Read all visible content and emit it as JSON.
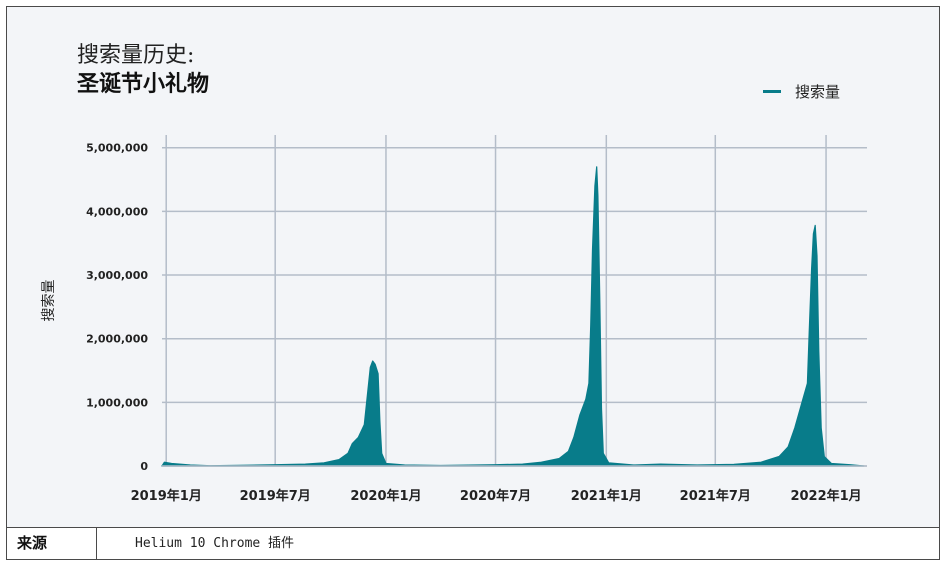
{
  "chart_data": {
    "type": "area",
    "title": "搜索量历史:",
    "subtitle": "圣诞节小礼物",
    "ylabel": "搜索量",
    "xlabel": "",
    "legend": {
      "position": "top-right",
      "entries": [
        "搜索量"
      ]
    },
    "grid": true,
    "ylim": [
      0,
      5200000
    ],
    "yticks": [
      0,
      1000000,
      2000000,
      3000000,
      4000000,
      5000000
    ],
    "ytick_labels": [
      "0",
      "1,000,000",
      "2,000,000",
      "3,000,000",
      "4,000,000",
      "5,000,000"
    ],
    "xticks": [
      "2019-01",
      "2019-07",
      "2020-01",
      "2020-07",
      "2021-01",
      "2021-07",
      "2022-01"
    ],
    "xtick_labels": [
      "2019年1月",
      "2019年7月",
      "2020年1月",
      "2020年7月",
      "2021年1月",
      "2021年7月",
      "2022年1月"
    ],
    "color": "#087c8a",
    "series": [
      {
        "name": "搜索量",
        "points": [
          [
            "2018-12-25",
            0
          ],
          [
            "2018-12-29",
            60000
          ],
          [
            "2019-01-10",
            40000
          ],
          [
            "2019-02-10",
            15000
          ],
          [
            "2019-03-15",
            5000
          ],
          [
            "2019-05-01",
            10000
          ],
          [
            "2019-07-01",
            20000
          ],
          [
            "2019-08-20",
            30000
          ],
          [
            "2019-09-20",
            50000
          ],
          [
            "2019-10-15",
            100000
          ],
          [
            "2019-10-30",
            200000
          ],
          [
            "2019-11-06",
            350000
          ],
          [
            "2019-11-16",
            450000
          ],
          [
            "2019-11-26",
            650000
          ],
          [
            "2019-12-01",
            1100000
          ],
          [
            "2019-12-06",
            1550000
          ],
          [
            "2019-12-10",
            1650000
          ],
          [
            "2019-12-14",
            1600000
          ],
          [
            "2019-12-19",
            1450000
          ],
          [
            "2019-12-22",
            700000
          ],
          [
            "2019-12-25",
            200000
          ],
          [
            "2020-01-01",
            40000
          ],
          [
            "2020-02-01",
            15000
          ],
          [
            "2020-04-01",
            8000
          ],
          [
            "2020-07-01",
            20000
          ],
          [
            "2020-08-15",
            30000
          ],
          [
            "2020-09-15",
            60000
          ],
          [
            "2020-10-15",
            120000
          ],
          [
            "2020-10-30",
            230000
          ],
          [
            "2020-11-08",
            450000
          ],
          [
            "2020-11-18",
            800000
          ],
          [
            "2020-11-28",
            1050000
          ],
          [
            "2020-12-03",
            1300000
          ],
          [
            "2020-12-06",
            2200000
          ],
          [
            "2020-12-09",
            3400000
          ],
          [
            "2020-12-13",
            4400000
          ],
          [
            "2020-12-16",
            4700000
          ],
          [
            "2020-12-18",
            4250000
          ],
          [
            "2020-12-21",
            2700000
          ],
          [
            "2020-12-24",
            900000
          ],
          [
            "2020-12-27",
            200000
          ],
          [
            "2021-01-05",
            50000
          ],
          [
            "2021-02-15",
            15000
          ],
          [
            "2021-04-01",
            30000
          ],
          [
            "2021-06-01",
            15000
          ],
          [
            "2021-08-01",
            25000
          ],
          [
            "2021-09-15",
            60000
          ],
          [
            "2021-10-15",
            150000
          ],
          [
            "2021-10-30",
            300000
          ],
          [
            "2021-11-10",
            600000
          ],
          [
            "2021-11-22",
            1000000
          ],
          [
            "2021-12-01",
            1300000
          ],
          [
            "2021-12-04",
            2100000
          ],
          [
            "2021-12-08",
            3100000
          ],
          [
            "2021-12-11",
            3650000
          ],
          [
            "2021-12-14",
            3780000
          ],
          [
            "2021-12-17",
            3300000
          ],
          [
            "2021-12-20",
            1800000
          ],
          [
            "2021-12-24",
            600000
          ],
          [
            "2021-12-29",
            150000
          ],
          [
            "2022-01-10",
            40000
          ],
          [
            "2022-02-10",
            20000
          ],
          [
            "2022-03-05",
            0
          ]
        ]
      }
    ]
  },
  "footer": {
    "label": "来源",
    "value": "Helium 10 Chrome 插件"
  }
}
